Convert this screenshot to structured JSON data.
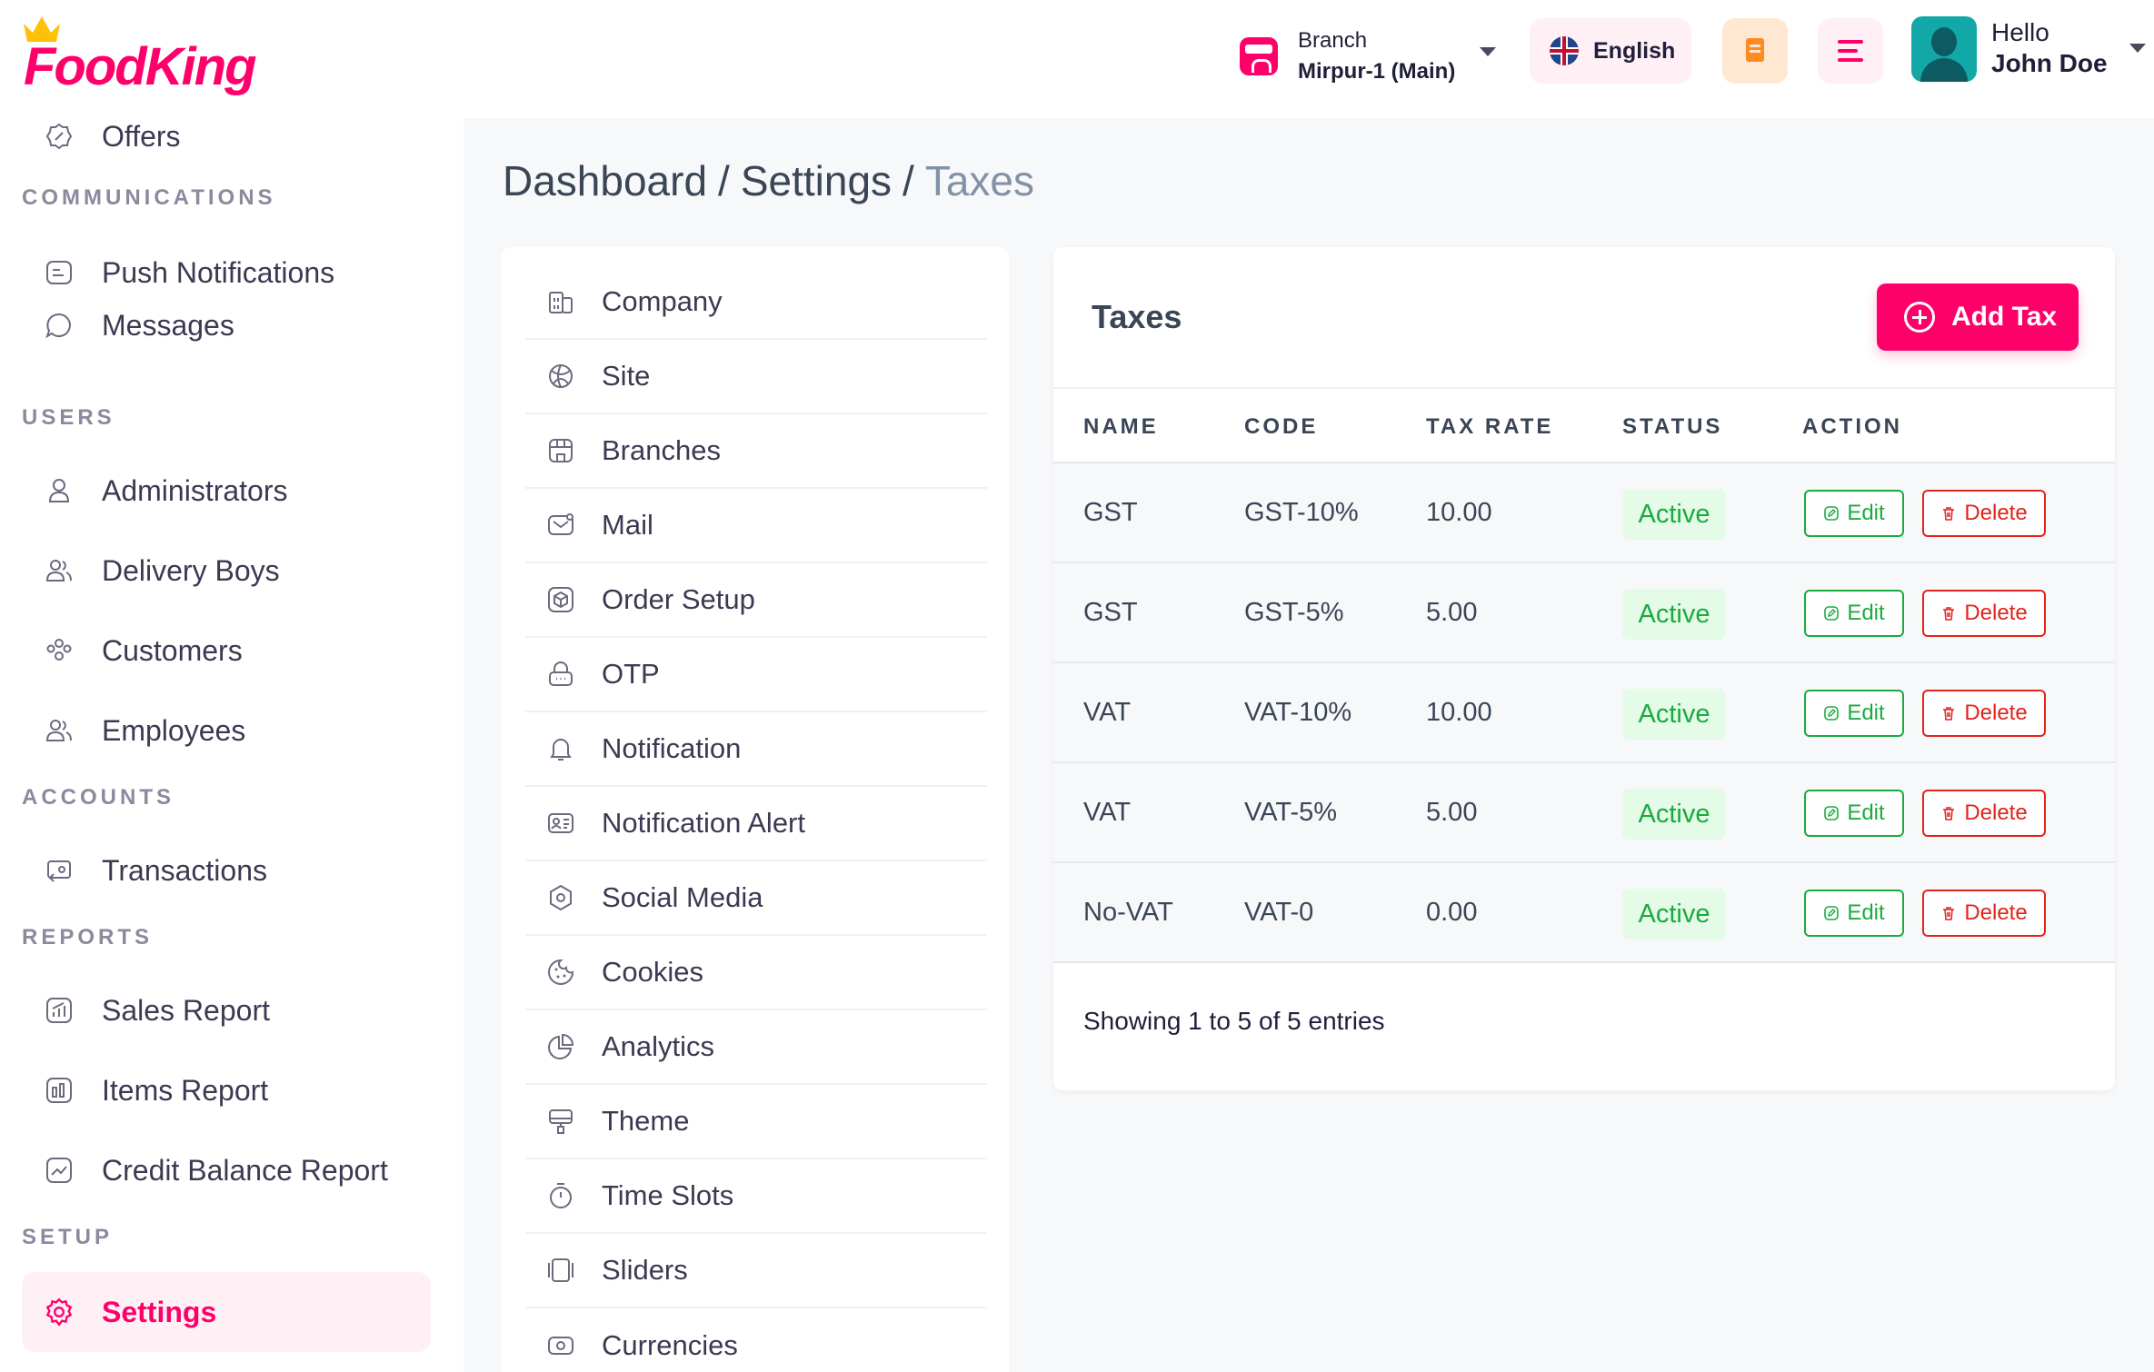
{
  "brand": {
    "name": "FoodKing",
    "color": "#ff006b"
  },
  "header": {
    "branch_label": "Branch",
    "branch_value": "Mirpur-1 (Main)",
    "language": "English",
    "user_greeting": "Hello",
    "user_name": "John Doe"
  },
  "sidebar": {
    "offers": "Offers",
    "communications_heading": "COMMUNICATIONS",
    "push_notifications": "Push Notifications",
    "messages": "Messages",
    "users_heading": "USERS",
    "administrators": "Administrators",
    "delivery_boys": "Delivery Boys",
    "customers": "Customers",
    "employees": "Employees",
    "accounts_heading": "ACCOUNTS",
    "transactions": "Transactions",
    "reports_heading": "REPORTS",
    "sales_report": "Sales Report",
    "items_report": "Items Report",
    "credit_balance_report": "Credit Balance Report",
    "setup_heading": "SETUP",
    "settings": "Settings"
  },
  "breadcrumb": {
    "root": "Dashboard",
    "parent": "Settings",
    "current": "Taxes",
    "separator": "/"
  },
  "settings_menu": [
    {
      "label": "Company",
      "icon": "building-icon"
    },
    {
      "label": "Site",
      "icon": "globe-icon"
    },
    {
      "label": "Branches",
      "icon": "store-icon"
    },
    {
      "label": "Mail",
      "icon": "mail-icon"
    },
    {
      "label": "Order Setup",
      "icon": "box-icon"
    },
    {
      "label": "OTP",
      "icon": "lock-icon"
    },
    {
      "label": "Notification",
      "icon": "bell-icon"
    },
    {
      "label": "Notification Alert",
      "icon": "id-card-icon"
    },
    {
      "label": "Social Media",
      "icon": "hexagon-icon"
    },
    {
      "label": "Cookies",
      "icon": "cookie-icon"
    },
    {
      "label": "Analytics",
      "icon": "pie-chart-icon"
    },
    {
      "label": "Theme",
      "icon": "paint-roller-icon"
    },
    {
      "label": "Time Slots",
      "icon": "timer-icon"
    },
    {
      "label": "Sliders",
      "icon": "slides-icon"
    },
    {
      "label": "Currencies",
      "icon": "money-icon"
    }
  ],
  "taxes": {
    "title": "Taxes",
    "add_button": "Add Tax",
    "columns": [
      "NAME",
      "CODE",
      "TAX RATE",
      "STATUS",
      "ACTION"
    ],
    "rows": [
      {
        "name": "GST",
        "code": "GST-10%",
        "rate": "10.00",
        "status": "Active"
      },
      {
        "name": "GST",
        "code": "GST-5%",
        "rate": "5.00",
        "status": "Active"
      },
      {
        "name": "VAT",
        "code": "VAT-10%",
        "rate": "10.00",
        "status": "Active"
      },
      {
        "name": "VAT",
        "code": "VAT-5%",
        "rate": "5.00",
        "status": "Active"
      },
      {
        "name": "No-VAT",
        "code": "VAT-0",
        "rate": "0.00",
        "status": "Active"
      }
    ],
    "edit_label": "Edit",
    "delete_label": "Delete",
    "footer": "Showing 1 to 5 of 5 entries"
  }
}
